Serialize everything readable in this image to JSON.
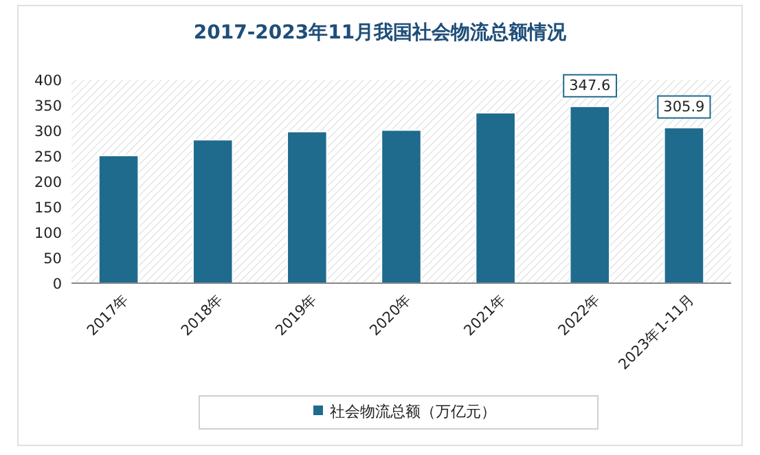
{
  "chart_data": {
    "type": "bar",
    "title": "2017-2023年11月我国社会物流总额情况",
    "categories": [
      "2017年",
      "2018年",
      "2019年",
      "2020年",
      "2021年",
      "2022年",
      "2023年1-11月"
    ],
    "series": [
      {
        "name": "社会物流总额（万亿元）",
        "color": "#1f6b8e",
        "values": [
          251,
          282,
          298,
          301,
          335,
          347.6,
          305.9
        ],
        "value_labels": [
          null,
          null,
          null,
          null,
          null,
          "347.6",
          "305.9"
        ]
      }
    ],
    "ylim": [
      0,
      400
    ],
    "yticks": [
      0,
      50,
      100,
      150,
      200,
      250,
      300,
      350,
      400
    ],
    "grid": false,
    "legend": "bottom"
  }
}
